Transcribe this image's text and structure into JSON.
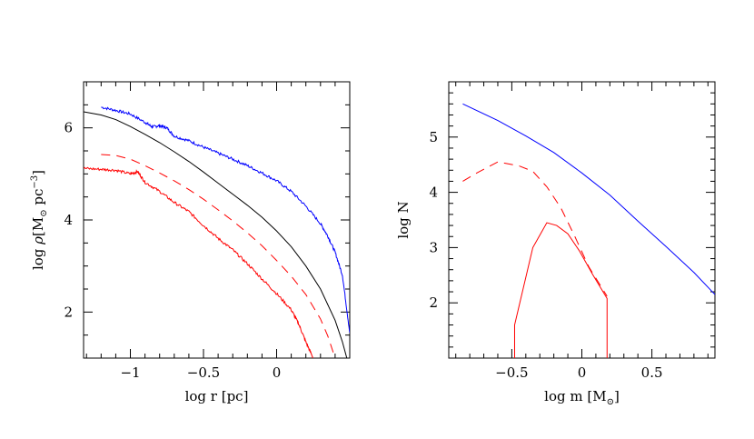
{
  "chart_data": [
    {
      "type": "line",
      "xlabel_parts": [
        "log r [pc]"
      ],
      "ylabel_parts": [
        "log ",
        "ρ",
        "[M",
        "⊙",
        " pc",
        "−3",
        "]"
      ],
      "xlim": [
        -1.32,
        0.5
      ],
      "ylim": [
        1.0,
        7.0
      ],
      "xticks_major": [
        -1,
        -0.5,
        0
      ],
      "xtick_labels": [
        "−1",
        "−0.5",
        "0"
      ],
      "yticks_major": [
        2,
        4,
        6
      ],
      "ytick_labels": [
        "2",
        "4",
        "6"
      ],
      "grid": false,
      "series": [
        {
          "color": "#0000ff",
          "dash": "solid",
          "noise": 0.06,
          "x": [
            -1.2,
            -1.1,
            -1.0,
            -0.9,
            -0.85,
            -0.8,
            -0.75,
            -0.7,
            -0.6,
            -0.5,
            -0.4,
            -0.3,
            -0.2,
            -0.1,
            0.0,
            0.1,
            0.2,
            0.3,
            0.35,
            0.4,
            0.45,
            0.5
          ],
          "y": [
            6.45,
            6.38,
            6.3,
            6.12,
            6.02,
            6.05,
            6.0,
            5.82,
            5.72,
            5.58,
            5.45,
            5.32,
            5.18,
            5.02,
            4.85,
            4.62,
            4.3,
            3.92,
            3.65,
            3.3,
            2.8,
            1.55
          ]
        },
        {
          "color": "#000000",
          "dash": "solid",
          "noise": 0,
          "x": [
            -1.32,
            -1.2,
            -1.1,
            -1.0,
            -0.9,
            -0.8,
            -0.7,
            -0.6,
            -0.5,
            -0.4,
            -0.3,
            -0.2,
            -0.1,
            0.0,
            0.1,
            0.2,
            0.3,
            0.4,
            0.45,
            0.48
          ],
          "y": [
            6.35,
            6.28,
            6.18,
            6.03,
            5.86,
            5.68,
            5.48,
            5.27,
            5.04,
            4.8,
            4.56,
            4.32,
            4.06,
            3.76,
            3.42,
            3.0,
            2.5,
            1.82,
            1.35,
            1.0
          ]
        },
        {
          "color": "#ff0000",
          "dash": "10 7",
          "noise": 0,
          "x": [
            -1.2,
            -1.1,
            -1.0,
            -0.9,
            -0.8,
            -0.7,
            -0.6,
            -0.5,
            -0.4,
            -0.3,
            -0.2,
            -0.1,
            0.0,
            0.1,
            0.2,
            0.3,
            0.35,
            0.4
          ],
          "y": [
            5.42,
            5.4,
            5.32,
            5.18,
            5.02,
            4.85,
            4.66,
            4.45,
            4.22,
            3.98,
            3.72,
            3.44,
            3.12,
            2.78,
            2.38,
            1.85,
            1.48,
            1.0
          ]
        },
        {
          "color": "#ff0000",
          "dash": "solid",
          "noise": 0.06,
          "x": [
            -1.32,
            -1.2,
            -1.1,
            -1.0,
            -0.95,
            -0.9,
            -0.8,
            -0.7,
            -0.6,
            -0.5,
            -0.4,
            -0.3,
            -0.2,
            -0.1,
            0.0,
            0.1,
            0.15,
            0.2,
            0.25
          ],
          "y": [
            5.12,
            5.1,
            5.08,
            5.0,
            5.05,
            4.82,
            4.62,
            4.38,
            4.18,
            3.88,
            3.6,
            3.35,
            3.05,
            2.72,
            2.4,
            2.05,
            1.75,
            1.35,
            1.0
          ]
        }
      ]
    },
    {
      "type": "line",
      "xlabel_parts": [
        "log m [M",
        "⊙",
        "]"
      ],
      "ylabel_parts": [
        "log N"
      ],
      "xlim": [
        -0.95,
        0.95
      ],
      "ylim": [
        1.0,
        6.0
      ],
      "xticks_major": [
        -0.5,
        0,
        0.5
      ],
      "xtick_labels": [
        "−0.5",
        "0",
        "0.5"
      ],
      "yticks_major": [
        2,
        3,
        4,
        5
      ],
      "ytick_labels": [
        "2",
        "3",
        "4",
        "5"
      ],
      "grid": false,
      "series": [
        {
          "color": "#0000ff",
          "dash": "solid",
          "noise": 0,
          "x": [
            -0.85,
            -0.6,
            -0.4,
            -0.2,
            0.0,
            0.2,
            0.4,
            0.6,
            0.8,
            0.95
          ],
          "y": [
            5.6,
            5.3,
            5.02,
            4.72,
            4.35,
            3.95,
            3.48,
            3.02,
            2.55,
            2.15
          ]
        },
        {
          "color": "#ff0000",
          "dash": "10 7",
          "noise": 0,
          "x": [
            -0.85,
            -0.75,
            -0.6,
            -0.45,
            -0.35,
            -0.25,
            -0.15,
            -0.05,
            0.05,
            0.18
          ],
          "y": [
            4.2,
            4.35,
            4.55,
            4.48,
            4.38,
            4.1,
            3.72,
            3.2,
            2.65,
            2.12
          ]
        },
        {
          "color": "#ff0000",
          "dash": "solid",
          "noise": 0,
          "x": [
            -0.48,
            -0.48,
            -0.35,
            -0.25,
            -0.18,
            -0.1,
            -0.02,
            0.08,
            0.18,
            0.18
          ],
          "y": [
            1.0,
            1.6,
            3.0,
            3.45,
            3.4,
            3.25,
            2.95,
            2.5,
            2.08,
            1.0
          ]
        }
      ]
    }
  ]
}
